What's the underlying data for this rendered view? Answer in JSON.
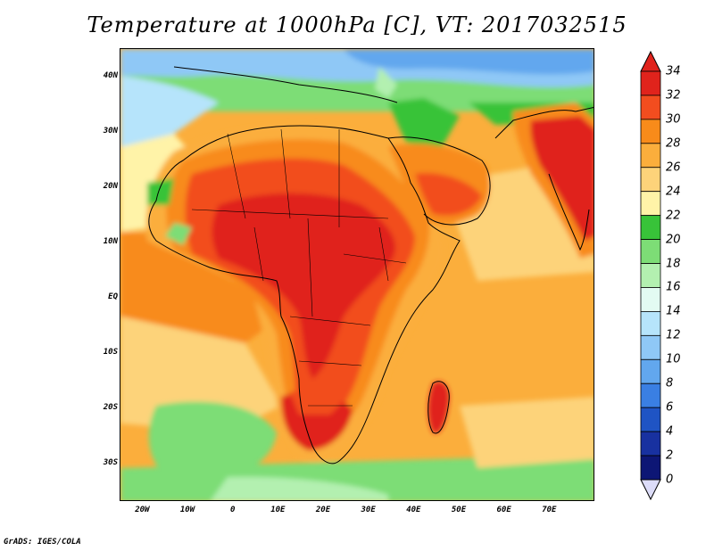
{
  "title": "Temperature at 1000hPa [C], VT: 2017032515",
  "credit": "GrADS: IGES/COLA",
  "map": {
    "lon_range": [
      -25,
      80
    ],
    "lat_range": [
      -37,
      45
    ],
    "lat_labels": [
      {
        "lat": 40,
        "text": "40N"
      },
      {
        "lat": 30,
        "text": "30N"
      },
      {
        "lat": 20,
        "text": "20N"
      },
      {
        "lat": 10,
        "text": "10N"
      },
      {
        "lat": 0,
        "text": "EQ"
      },
      {
        "lat": -10,
        "text": "10S"
      },
      {
        "lat": -20,
        "text": "20S"
      },
      {
        "lat": -30,
        "text": "30S"
      }
    ],
    "lon_labels": [
      {
        "lon": -20,
        "text": "20W"
      },
      {
        "lon": -10,
        "text": "10W"
      },
      {
        "lon": 0,
        "text": "0"
      },
      {
        "lon": 10,
        "text": "10E"
      },
      {
        "lon": 20,
        "text": "20E"
      },
      {
        "lon": 30,
        "text": "30E"
      },
      {
        "lon": 40,
        "text": "40E"
      },
      {
        "lon": 50,
        "text": "50E"
      },
      {
        "lon": 60,
        "text": "60E"
      },
      {
        "lon": 70,
        "text": "70E"
      }
    ]
  },
  "colorbar": {
    "labels": [
      "34",
      "32",
      "30",
      "28",
      "26",
      "24",
      "22",
      "20",
      "18",
      "16",
      "14",
      "12",
      "10",
      "8",
      "6",
      "4",
      "2",
      "0"
    ],
    "colors": [
      "#e0231c",
      "#f24d1f",
      "#f88b1a",
      "#fbae3c",
      "#fdd37a",
      "#fff3a8",
      "#38c339",
      "#7ddd76",
      "#b3f0b0",
      "#e3fbf2",
      "#b6e4fb",
      "#8fc8f6",
      "#62a7ee",
      "#3a7fe3",
      "#1f54c4",
      "#1831a0",
      "#0d1675"
    ],
    "top_arrow_color": "#e0231c",
    "bottom_arrow_color": "#dcdcf8"
  }
}
